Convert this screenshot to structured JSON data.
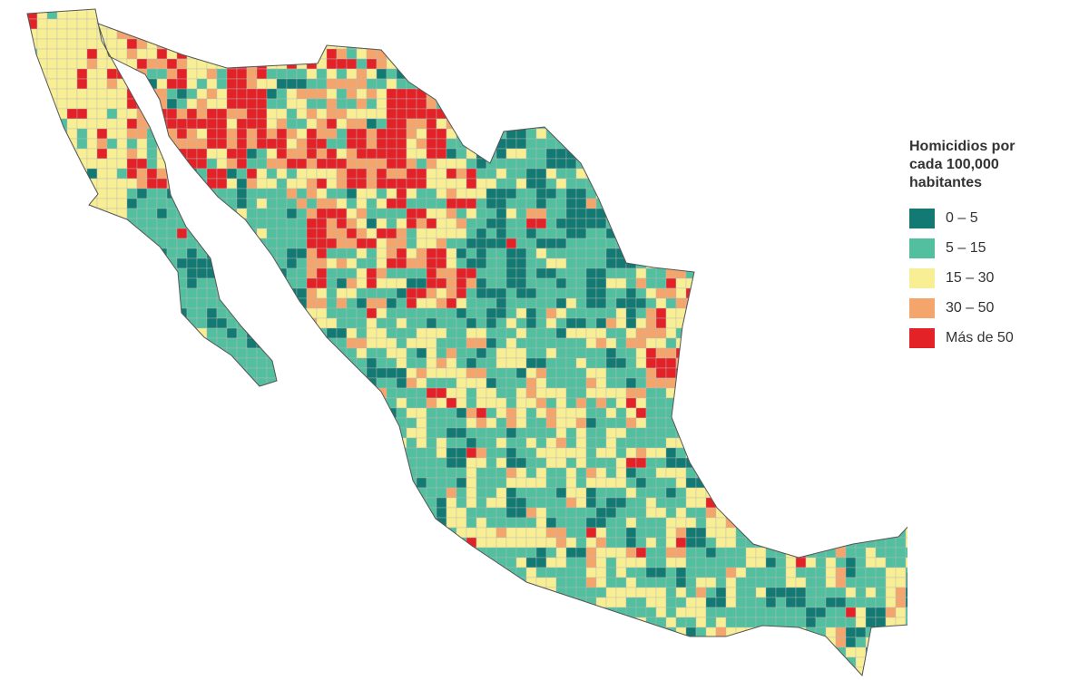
{
  "legend": {
    "title": "Homicidios por cada 100,000 habitantes",
    "items": [
      {
        "label": "0 – 5",
        "color": "#127a72"
      },
      {
        "label": "5 – 15",
        "color": "#52bf9f"
      },
      {
        "label": "15 – 30",
        "color": "#f8ee94"
      },
      {
        "label": "30 – 50",
        "color": "#f4a56c"
      },
      {
        "label": "Más de 50",
        "color": "#e32228"
      }
    ]
  }
}
